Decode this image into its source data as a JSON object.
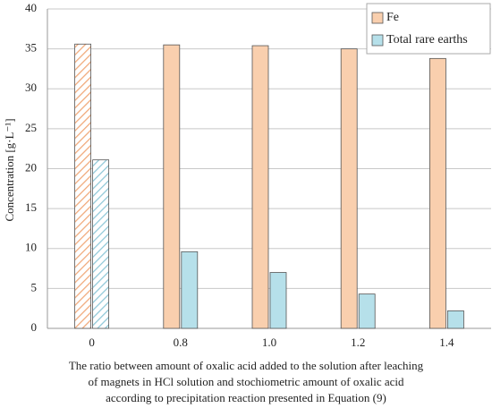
{
  "chart_data": {
    "type": "bar",
    "ylabel": "Concentration [g·L⁻¹]",
    "xlabel": [
      "The ratio between amount of oxalic acid added to the solution after leaching",
      "of magnets in HCl solution and stochiometric amount of oxalic acid",
      "according to precipitation reaction presented in Equation (9)"
    ],
    "categories": [
      "0",
      "0.8",
      "1.0",
      "1.2",
      "1.4"
    ],
    "hatched": [
      true,
      false,
      false,
      false,
      false
    ],
    "series": [
      {
        "name": "Fe",
        "color": "#f9cfae",
        "values": [
          35.6,
          35.5,
          35.4,
          35.0,
          33.8
        ]
      },
      {
        "name": "Total rare earths",
        "color": "#b6e0ea",
        "values": [
          21.1,
          9.6,
          7.0,
          4.3,
          2.2
        ]
      }
    ],
    "ylim": [
      0,
      40
    ],
    "yticks": [
      0,
      5,
      10,
      15,
      20,
      25,
      30,
      35,
      40
    ],
    "grid": true,
    "legend": "top-right"
  }
}
